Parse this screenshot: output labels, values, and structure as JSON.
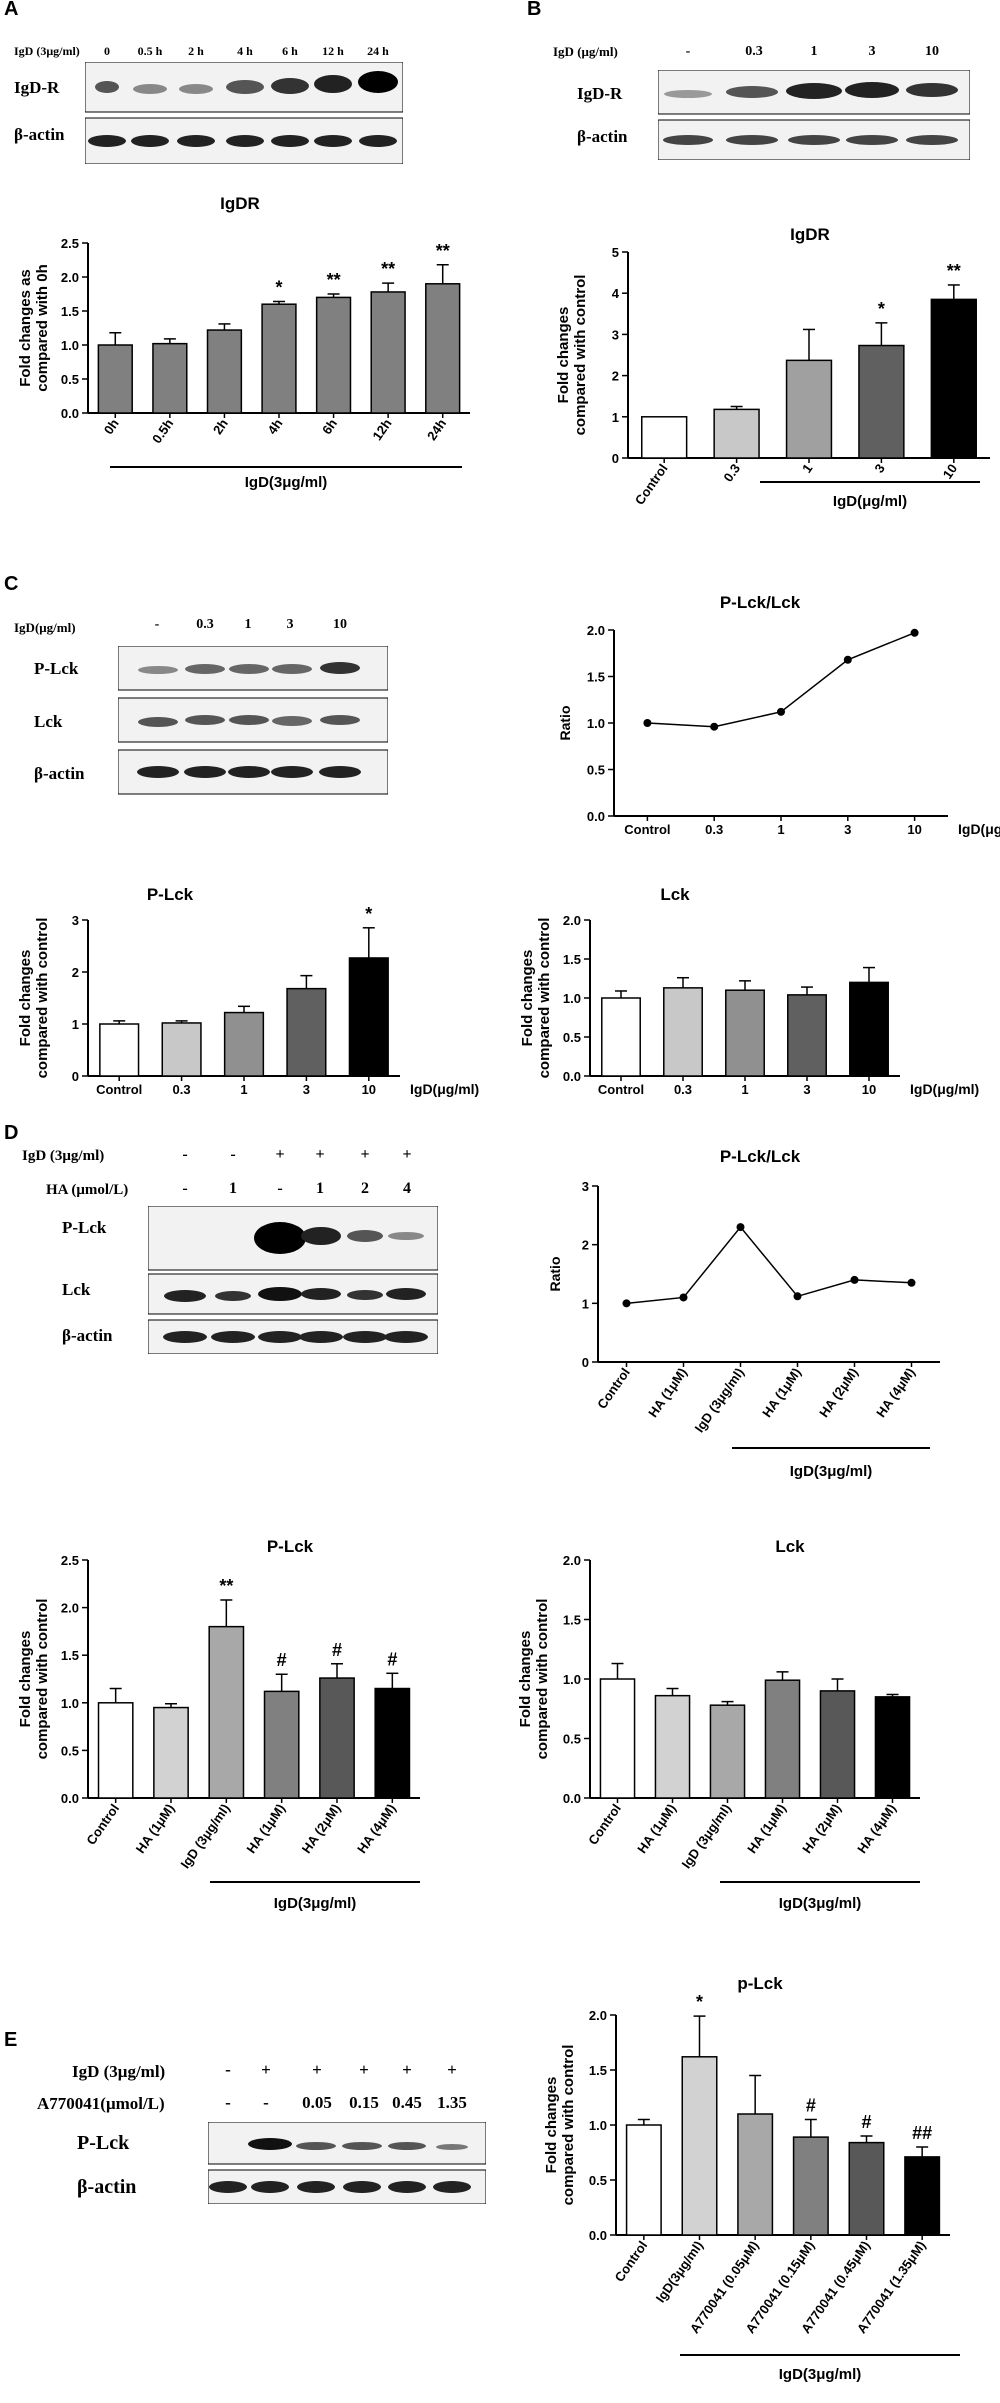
{
  "panel_labels": [
    "A",
    "B",
    "C",
    "D",
    "E"
  ],
  "blots": {
    "A": {
      "treatment_label": "IgD (3μg/ml)",
      "lanes": [
        "0",
        "0.5 h",
        "2 h",
        "4 h",
        "6 h",
        "12 h",
        "24 h"
      ],
      "rows": [
        "IgD-R",
        "β-actin"
      ]
    },
    "B": {
      "treatment_label": "IgD (μg/ml)",
      "lanes": [
        "-",
        "0.3",
        "1",
        "3",
        "10"
      ],
      "rows": [
        "IgD-R",
        "β-actin"
      ]
    },
    "C": {
      "treatment_label": "IgD(μg/ml)",
      "lanes": [
        "-",
        "0.3",
        "1",
        "3",
        "10"
      ],
      "rows": [
        "P-Lck",
        "Lck",
        "β-actin"
      ]
    },
    "D": {
      "treatment_rows": [
        {
          "label": "IgD (3μg/ml)",
          "values": [
            "-",
            "-",
            "+",
            "+",
            "+",
            "+"
          ]
        },
        {
          "label": "HA (μmol/L)",
          "values": [
            "-",
            "1",
            "-",
            "1",
            "2",
            "4"
          ]
        }
      ],
      "rows": [
        "P-Lck",
        "Lck",
        "β-actin"
      ]
    },
    "E": {
      "treatment_rows": [
        {
          "label": "IgD (3μg/ml)",
          "values": [
            "-",
            "+",
            "+",
            "+",
            "+",
            "+"
          ]
        },
        {
          "label": "A770041(μmol/L)",
          "values": [
            "-",
            "-",
            "0.05",
            "0.15",
            "0.45",
            "1.35"
          ]
        }
      ],
      "rows": [
        "P-Lck",
        "β-actin"
      ]
    }
  },
  "chart_data": [
    {
      "id": "A-bar",
      "type": "bar",
      "title": "IgDR",
      "ylabel": "Fold changes as compared with 0h",
      "categories": [
        "0h",
        "0.5h",
        "2h",
        "4h",
        "6h",
        "12h",
        "24h"
      ],
      "values": [
        1.0,
        1.02,
        1.22,
        1.6,
        1.7,
        1.78,
        1.9
      ],
      "errors": [
        0.18,
        0.07,
        0.09,
        0.04,
        0.05,
        0.13,
        0.28
      ],
      "significance": [
        "",
        "",
        "",
        "*",
        "**",
        "**",
        "**"
      ],
      "colors": [
        "#808080",
        "#808080",
        "#808080",
        "#808080",
        "#808080",
        "#808080",
        "#808080"
      ],
      "ylim": [
        0,
        2.5
      ],
      "yticks": [
        "0.0",
        "0.5",
        "1.0",
        "1.5",
        "2.0",
        "2.5"
      ],
      "group_label": "IgD(3μg/ml)"
    },
    {
      "id": "B-bar",
      "type": "bar",
      "title": "IgDR",
      "ylabel": "Fold changes compared with control",
      "categories": [
        "Control",
        "0.3",
        "1",
        "3",
        "10"
      ],
      "values": [
        1.0,
        1.18,
        2.37,
        2.73,
        3.85
      ],
      "errors": [
        0.0,
        0.07,
        0.75,
        0.55,
        0.35
      ],
      "significance": [
        "",
        "",
        "",
        "*",
        "**"
      ],
      "colors": [
        "#ffffff",
        "#c8c8c8",
        "#a0a0a0",
        "#606060",
        "#000000"
      ],
      "ylim": [
        0,
        5
      ],
      "yticks": [
        "0",
        "1",
        "2",
        "3",
        "4",
        "5"
      ],
      "group_label": "IgD(μg/ml)"
    },
    {
      "id": "C-line",
      "type": "line",
      "title": "P-Lck/Lck",
      "ylabel": "Ratio",
      "categories": [
        "Control",
        "0.3",
        "1",
        "3",
        "10"
      ],
      "values": [
        1.0,
        0.96,
        1.12,
        1.68,
        1.97
      ],
      "ylim": [
        0,
        2.0
      ],
      "yticks": [
        "0.0",
        "0.5",
        "1.0",
        "1.5",
        "2.0"
      ],
      "xlabel": "IgD(μg/ml)"
    },
    {
      "id": "C-bar-plck",
      "type": "bar",
      "title": "P-Lck",
      "ylabel": "Fold changes compared with control",
      "categories": [
        "Control",
        "0.3",
        "1",
        "3",
        "10"
      ],
      "values": [
        1.0,
        1.02,
        1.22,
        1.68,
        2.27
      ],
      "errors": [
        0.06,
        0.04,
        0.12,
        0.25,
        0.58
      ],
      "significance": [
        "",
        "",
        "",
        "",
        "*"
      ],
      "colors": [
        "#ffffff",
        "#c8c8c8",
        "#909090",
        "#606060",
        "#000000"
      ],
      "ylim": [
        0,
        3
      ],
      "yticks": [
        "0",
        "1",
        "2",
        "3"
      ],
      "xlabel": "IgD(μg/ml)"
    },
    {
      "id": "C-bar-lck",
      "type": "bar",
      "title": "Lck",
      "ylabel": "Fold changes compared with control",
      "categories": [
        "Control",
        "0.3",
        "1",
        "3",
        "10"
      ],
      "values": [
        1.0,
        1.13,
        1.1,
        1.04,
        1.2
      ],
      "errors": [
        0.09,
        0.13,
        0.12,
        0.1,
        0.19
      ],
      "significance": [
        "",
        "",
        "",
        "",
        ""
      ],
      "colors": [
        "#ffffff",
        "#c8c8c8",
        "#909090",
        "#606060",
        "#000000"
      ],
      "ylim": [
        0,
        2.0
      ],
      "yticks": [
        "0.0",
        "0.5",
        "1.0",
        "1.5",
        "2.0"
      ],
      "xlabel": "IgD(μg/ml)"
    },
    {
      "id": "D-line",
      "type": "line",
      "title": "P-Lck/Lck",
      "ylabel": "Ratio",
      "categories": [
        "Control",
        "HA (1μM)",
        "IgD (3μg/ml)",
        "HA (1μM)",
        "HA (2μM)",
        "HA (4μM)"
      ],
      "values": [
        1.0,
        1.1,
        2.3,
        1.12,
        1.4,
        1.35
      ],
      "ylim": [
        0,
        3
      ],
      "yticks": [
        "0",
        "1",
        "2",
        "3"
      ],
      "group_label": "IgD(3μg/ml)"
    },
    {
      "id": "D-bar-plck",
      "type": "bar",
      "title": "P-Lck",
      "ylabel": "Fold changes compared with control",
      "categories": [
        "Control",
        "HA (1μM)",
        "IgD (3μg/ml)",
        "HA (1μM)",
        "HA (2μM)",
        "HA (4μM)"
      ],
      "values": [
        1.0,
        0.95,
        1.8,
        1.12,
        1.26,
        1.15
      ],
      "errors": [
        0.15,
        0.04,
        0.28,
        0.18,
        0.15,
        0.16
      ],
      "significance": [
        "",
        "",
        "**",
        "#",
        "#",
        "#"
      ],
      "colors": [
        "#ffffff",
        "#d2d2d2",
        "#a8a8a8",
        "#808080",
        "#585858",
        "#000000"
      ],
      "ylim": [
        0,
        2.5
      ],
      "yticks": [
        "0.0",
        "0.5",
        "1.0",
        "1.5",
        "2.0",
        "2.5"
      ],
      "group_label": "IgD(3μg/ml)"
    },
    {
      "id": "D-bar-lck",
      "type": "bar",
      "title": "Lck",
      "ylabel": "Fold changes compared with control",
      "categories": [
        "Control",
        "HA (1μM)",
        "IgD (3μg/ml)",
        "HA (1μM)",
        "HA (2μM)",
        "HA (4μM)"
      ],
      "values": [
        1.0,
        0.86,
        0.78,
        0.99,
        0.9,
        0.85
      ],
      "errors": [
        0.13,
        0.06,
        0.03,
        0.07,
        0.1,
        0.02
      ],
      "significance": [
        "",
        "",
        "",
        "",
        "",
        ""
      ],
      "colors": [
        "#ffffff",
        "#d2d2d2",
        "#a8a8a8",
        "#808080",
        "#585858",
        "#000000"
      ],
      "ylim": [
        0,
        2.0
      ],
      "yticks": [
        "0.0",
        "0.5",
        "1.0",
        "1.5",
        "2.0"
      ],
      "group_label": "IgD(3μg/ml)"
    },
    {
      "id": "E-bar",
      "type": "bar",
      "title": "p-Lck",
      "ylabel": "Fold changes compared with control",
      "categories": [
        "Control",
        "IgD(3μg/ml)",
        "A770041 (0.05μM)",
        "A770041 (0.15μM)",
        "A770041 (0.45μM)",
        "A770041 (1.35μM)"
      ],
      "values": [
        1.0,
        1.62,
        1.1,
        0.89,
        0.84,
        0.71
      ],
      "errors": [
        0.05,
        0.37,
        0.35,
        0.16,
        0.06,
        0.09
      ],
      "significance": [
        "",
        "*",
        "",
        "#",
        "#",
        "##"
      ],
      "colors": [
        "#ffffff",
        "#d2d2d2",
        "#a8a8a8",
        "#808080",
        "#585858",
        "#000000"
      ],
      "ylim": [
        0,
        2.0
      ],
      "yticks": [
        "0.0",
        "0.5",
        "1.0",
        "1.5",
        "2.0"
      ],
      "group_label": "IgD(3μg/ml)"
    }
  ]
}
